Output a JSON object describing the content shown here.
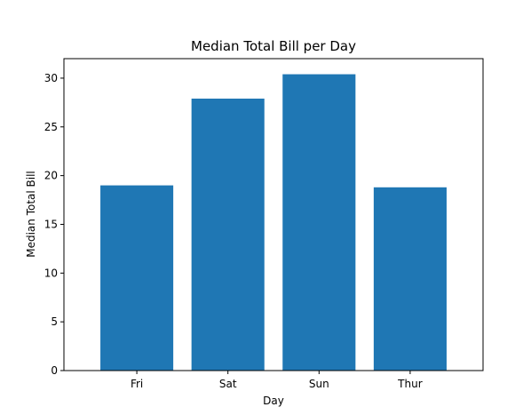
{
  "chart_data": {
    "type": "bar",
    "title": "Median Total Bill per Day",
    "xlabel": "Day",
    "ylabel": "Median Total Bill",
    "categories": [
      "Fri",
      "Sat",
      "Sun",
      "Thur"
    ],
    "values": [
      19.0,
      27.9,
      30.4,
      18.8
    ],
    "ylim": [
      0,
      32
    ],
    "yticks": [
      0,
      5,
      10,
      15,
      20,
      25,
      30
    ],
    "bar_color": "#1f77b4",
    "grid": false,
    "legend": "none"
  }
}
